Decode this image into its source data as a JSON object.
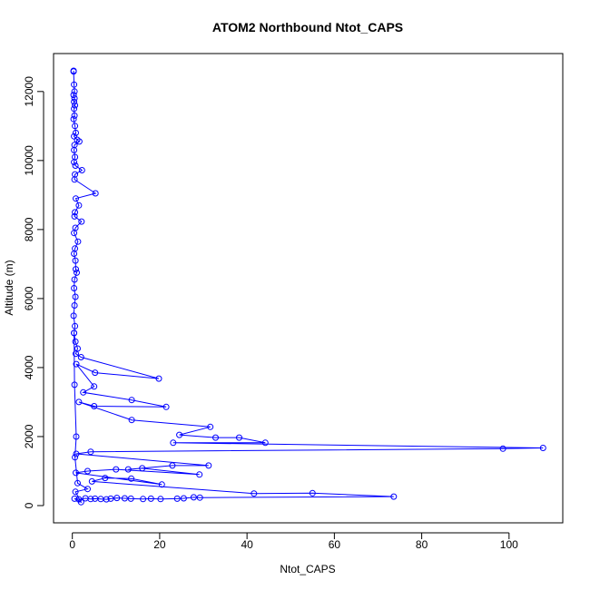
{
  "chart_data": {
    "type": "line",
    "title": "ATOM2 Northbound Ntot_CAPS",
    "xlabel": "Ntot_CAPS",
    "ylabel": "Altitude (m)",
    "xlim": [
      -4.3,
      112.3
    ],
    "ylim": [
      -500,
      13100
    ],
    "x_ticks": [
      0,
      20,
      40,
      60,
      80,
      100
    ],
    "y_ticks": [
      0,
      2000,
      4000,
      6000,
      8000,
      10000,
      12000
    ],
    "grid": false,
    "marker": "open-circle",
    "color": "#0000ff",
    "series": [
      {
        "values": [
          {
            "x": 0.3,
            "y": 12600
          },
          {
            "x": 0.3,
            "y": 12580
          },
          {
            "x": 0.4,
            "y": 12200
          },
          {
            "x": 0.5,
            "y": 12000
          },
          {
            "x": 0.3,
            "y": 11900
          },
          {
            "x": 0.5,
            "y": 11800
          },
          {
            "x": 0.4,
            "y": 11700
          },
          {
            "x": 0.6,
            "y": 11600
          },
          {
            "x": 0.4,
            "y": 11500
          },
          {
            "x": 0.5,
            "y": 11300
          },
          {
            "x": 0.3,
            "y": 11200
          },
          {
            "x": 0.6,
            "y": 11000
          },
          {
            "x": 0.8,
            "y": 10800
          },
          {
            "x": 0.4,
            "y": 10700
          },
          {
            "x": 1.1,
            "y": 10600
          },
          {
            "x": 1.6,
            "y": 10550
          },
          {
            "x": 0.5,
            "y": 10450
          },
          {
            "x": 0.4,
            "y": 10300
          },
          {
            "x": 0.6,
            "y": 10100
          },
          {
            "x": 0.4,
            "y": 9950
          },
          {
            "x": 0.7,
            "y": 9850
          },
          {
            "x": 2.2,
            "y": 9720
          },
          {
            "x": 0.6,
            "y": 9600
          },
          {
            "x": 0.5,
            "y": 9450
          },
          {
            "x": 5.3,
            "y": 9050
          },
          {
            "x": 0.8,
            "y": 8900
          },
          {
            "x": 1.5,
            "y": 8700
          },
          {
            "x": 0.6,
            "y": 8500
          },
          {
            "x": 0.5,
            "y": 8380
          },
          {
            "x": 2.1,
            "y": 8230
          },
          {
            "x": 0.7,
            "y": 8050
          },
          {
            "x": 0.4,
            "y": 7900
          },
          {
            "x": 1.3,
            "y": 7650
          },
          {
            "x": 0.6,
            "y": 7450
          },
          {
            "x": 0.4,
            "y": 7300
          },
          {
            "x": 0.7,
            "y": 7100
          },
          {
            "x": 0.8,
            "y": 6850
          },
          {
            "x": 1.0,
            "y": 6750
          },
          {
            "x": 0.5,
            "y": 6550
          },
          {
            "x": 0.4,
            "y": 6300
          },
          {
            "x": 0.7,
            "y": 6050
          },
          {
            "x": 0.5,
            "y": 5800
          },
          {
            "x": 0.3,
            "y": 5500
          },
          {
            "x": 0.6,
            "y": 5200
          },
          {
            "x": 0.4,
            "y": 5000
          },
          {
            "x": 0.7,
            "y": 4750
          },
          {
            "x": 1.2,
            "y": 4550
          },
          {
            "x": 0.8,
            "y": 4400
          },
          {
            "x": 2.0,
            "y": 4300
          },
          {
            "x": 19.8,
            "y": 3680
          },
          {
            "x": 5.2,
            "y": 3850
          },
          {
            "x": 0.9,
            "y": 4100
          },
          {
            "x": 5.0,
            "y": 3450
          },
          {
            "x": 2.5,
            "y": 3280
          },
          {
            "x": 13.6,
            "y": 3060
          },
          {
            "x": 21.5,
            "y": 2860
          },
          {
            "x": 5.0,
            "y": 2880
          },
          {
            "x": 1.5,
            "y": 3000
          },
          {
            "x": 13.6,
            "y": 2480
          },
          {
            "x": 31.6,
            "y": 2280
          },
          {
            "x": 24.5,
            "y": 2050
          },
          {
            "x": 32.8,
            "y": 1970
          },
          {
            "x": 38.2,
            "y": 1970
          },
          {
            "x": 44.2,
            "y": 1820
          },
          {
            "x": 23.1,
            "y": 1820
          },
          {
            "x": 107.8,
            "y": 1670
          },
          {
            "x": 98.6,
            "y": 1650
          },
          {
            "x": 4.2,
            "y": 1560
          },
          {
            "x": 0.9,
            "y": 1500
          },
          {
            "x": 31.2,
            "y": 1160
          },
          {
            "x": 22.9,
            "y": 1160
          },
          {
            "x": 12.8,
            "y": 1050
          },
          {
            "x": 16.0,
            "y": 1080
          },
          {
            "x": 29.1,
            "y": 900
          },
          {
            "x": 10.0,
            "y": 1050
          },
          {
            "x": 3.5,
            "y": 1000
          },
          {
            "x": 0.8,
            "y": 950
          },
          {
            "x": 20.5,
            "y": 610
          },
          {
            "x": 13.5,
            "y": 780
          },
          {
            "x": 7.5,
            "y": 800
          },
          {
            "x": 4.5,
            "y": 700
          },
          {
            "x": 41.6,
            "y": 350
          },
          {
            "x": 55.0,
            "y": 360
          },
          {
            "x": 73.6,
            "y": 260
          },
          {
            "x": 29.2,
            "y": 230
          },
          {
            "x": 27.8,
            "y": 240
          },
          {
            "x": 25.5,
            "y": 210
          },
          {
            "x": 24.0,
            "y": 200
          },
          {
            "x": 20.2,
            "y": 190
          },
          {
            "x": 18.0,
            "y": 200
          },
          {
            "x": 16.2,
            "y": 190
          },
          {
            "x": 13.4,
            "y": 200
          },
          {
            "x": 12.0,
            "y": 210
          },
          {
            "x": 10.2,
            "y": 220
          },
          {
            "x": 8.8,
            "y": 200
          },
          {
            "x": 7.8,
            "y": 180
          },
          {
            "x": 6.5,
            "y": 190
          },
          {
            "x": 5.2,
            "y": 200
          },
          {
            "x": 4.2,
            "y": 190
          },
          {
            "x": 3.0,
            "y": 210
          },
          {
            "x": 1.5,
            "y": 180
          },
          {
            "x": 0.5,
            "y": 200
          },
          {
            "x": 2.0,
            "y": 100
          },
          {
            "x": 0.7,
            "y": 400
          },
          {
            "x": 3.5,
            "y": 480
          },
          {
            "x": 1.2,
            "y": 650
          },
          {
            "x": 0.6,
            "y": 1400
          },
          {
            "x": 0.9,
            "y": 2000
          },
          {
            "x": 0.5,
            "y": 3500
          },
          {
            "x": 0.4,
            "y": 5000
          }
        ]
      }
    ]
  }
}
